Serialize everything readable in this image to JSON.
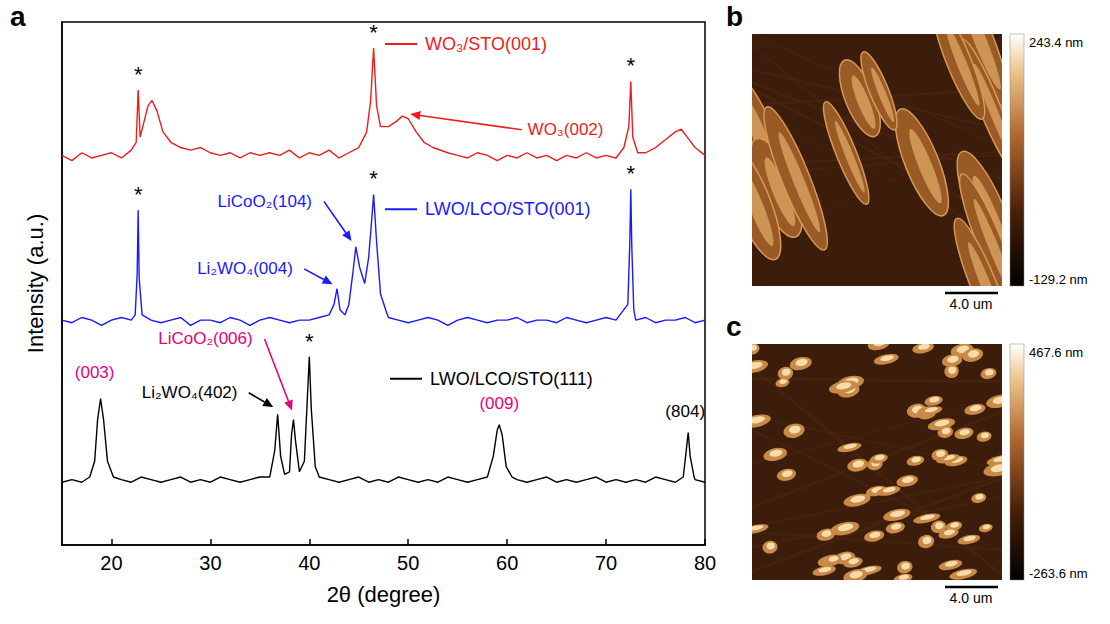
{
  "chart_data": {
    "type": "line",
    "panel": "a",
    "x_label": "2θ (degree)",
    "y_label": "Intensity (a.u.)",
    "xlim": [
      15,
      80
    ],
    "xticks": [
      20,
      30,
      40,
      50,
      60,
      70,
      80
    ],
    "ylim": [
      0,
      100
    ],
    "tick_labels": "x",
    "grid": false,
    "series": [
      {
        "name": "WO₃/STO(001)",
        "color": "#ee1c1c",
        "name_position": [
          51.7,
          95.8
        ],
        "x": [
          15,
          16,
          17,
          18,
          19,
          20,
          21,
          22,
          22.5,
          22.7,
          22.9,
          23.3,
          23.7,
          24.1,
          24.6,
          25.2,
          26,
          27,
          28,
          29,
          30,
          31,
          32,
          33,
          34,
          35,
          36,
          37,
          38,
          39,
          40,
          41,
          42,
          43,
          44,
          45,
          45.8,
          46.2,
          46.5,
          46.8,
          47.2,
          48,
          48.8,
          49.4,
          50,
          50.8,
          51.6,
          52.5,
          54,
          55,
          56,
          57,
          58,
          59,
          60,
          61,
          62,
          63,
          64,
          65,
          66,
          67,
          68,
          69,
          70,
          71,
          71.8,
          72.3,
          72.5,
          72.7,
          73.2,
          74,
          75,
          76,
          77,
          77.6,
          78.2,
          79,
          80
        ],
        "values": [
          74.5,
          73.5,
          75,
          74,
          74.5,
          75,
          74,
          75.5,
          77,
          87,
          78,
          81,
          84,
          85,
          83,
          79,
          77,
          76,
          75.5,
          76,
          75,
          74.5,
          75,
          74,
          75,
          74.5,
          75,
          74.5,
          75.5,
          74,
          75,
          74.5,
          75.5,
          74,
          75,
          76,
          79,
          85,
          95,
          84,
          80,
          80,
          81,
          82,
          81.5,
          79,
          77,
          76,
          75,
          74.5,
          74,
          75,
          74.5,
          73.5,
          74.5,
          74,
          75,
          74,
          74.5,
          73.5,
          74.5,
          74,
          75,
          74,
          74.5,
          74,
          76,
          80,
          88.6,
          78,
          75,
          75,
          76,
          77.5,
          79,
          79.5,
          78,
          76,
          74.5
        ]
      },
      {
        "name": "LWO/LCO/STO(001)",
        "color": "#1a1aff",
        "name_position": [
          51.7,
          64.2
        ],
        "x": [
          15,
          16,
          17,
          18,
          19,
          20,
          21,
          22,
          22.4,
          22.6,
          22.7,
          22.8,
          23.1,
          24,
          25,
          26,
          27,
          28,
          29,
          30,
          31,
          32,
          33,
          34,
          35,
          36,
          37,
          38,
          39,
          40,
          41,
          42,
          42.5,
          42.8,
          43.1,
          43.6,
          44,
          44.4,
          44.7,
          45.1,
          45.6,
          46,
          46.3,
          46.5,
          46.8,
          47.2,
          47.8,
          48,
          49,
          50,
          51,
          52,
          53,
          54,
          55,
          56,
          57,
          58,
          59,
          60,
          61,
          62,
          63,
          64,
          65,
          66,
          67,
          68,
          69,
          70,
          71,
          72.2,
          72.4,
          72.5,
          72.6,
          72.8,
          73,
          74,
          75,
          76,
          77,
          78,
          79,
          80
        ],
        "values": [
          43,
          42.5,
          43.5,
          43,
          42,
          43,
          43.5,
          43,
          44,
          52,
          64,
          51,
          44,
          43,
          42.5,
          43,
          43.5,
          42,
          43,
          43,
          42.5,
          43.5,
          43,
          42,
          43,
          43.5,
          43,
          42.5,
          43,
          43,
          43.5,
          44,
          46,
          49,
          45,
          44,
          46,
          52,
          57,
          53,
          50,
          55,
          62,
          67,
          58,
          48,
          44.5,
          43.5,
          43,
          42.5,
          43,
          43.5,
          43,
          42,
          43,
          43.5,
          43,
          42.5,
          43,
          43,
          43.5,
          42.5,
          43,
          43,
          42.5,
          43.5,
          43,
          42.5,
          43,
          43.5,
          43,
          46,
          58,
          68,
          57,
          45,
          43,
          43.5,
          42.5,
          43,
          43,
          43.5,
          42.5,
          43
        ]
      },
      {
        "name": "LWO/LCO/STO(111)",
        "color": "#000000",
        "name_position": [
          52.2,
          31.8
        ],
        "x": [
          15,
          16,
          17,
          17.8,
          18.3,
          18.6,
          18.9,
          19.2,
          19.6,
          20.2,
          21,
          22,
          23,
          24,
          25,
          26,
          27,
          28,
          29,
          30,
          31,
          32,
          33,
          34,
          35,
          36,
          36.5,
          36.8,
          37.1,
          37.5,
          38,
          38.2,
          38.4,
          38.6,
          39,
          39.5,
          39.8,
          40,
          40.2,
          40.6,
          41,
          42,
          43,
          44,
          45,
          46,
          47,
          48,
          49,
          50,
          51,
          52,
          53,
          54,
          55,
          56,
          57,
          58,
          58.6,
          59,
          59.2,
          59.5,
          59.9,
          60.5,
          61,
          62,
          63,
          64,
          65,
          66,
          67,
          68,
          69,
          70,
          71,
          72,
          73,
          74,
          75,
          76,
          77,
          77.8,
          78.1,
          78.3,
          78.5,
          78.9,
          79,
          80
        ],
        "values": [
          12,
          12.5,
          12,
          13,
          16,
          24,
          28,
          24,
          16,
          13,
          12.5,
          12,
          13,
          12.5,
          12,
          12.5,
          13,
          12,
          12.5,
          12,
          13,
          12.5,
          12,
          12.5,
          13,
          13,
          18,
          25,
          17,
          13.5,
          14,
          21,
          24,
          20,
          14,
          16,
          28,
          36,
          26,
          15,
          13,
          12.5,
          12,
          12.5,
          13,
          12,
          12.5,
          12,
          13,
          12.5,
          12,
          12.5,
          12,
          13,
          12.5,
          12,
          12.5,
          13,
          17,
          22,
          23,
          21,
          15,
          13,
          12.5,
          12,
          12.5,
          13,
          12,
          12.5,
          12,
          12.5,
          13,
          12,
          12.5,
          12,
          12.5,
          12,
          13,
          12.5,
          12,
          13,
          18,
          21.5,
          17,
          13,
          12.5,
          12
        ]
      }
    ],
    "annotations": [
      {
        "text": "*",
        "x": 22.7,
        "y": 90,
        "color": "#000000"
      },
      {
        "text": "*",
        "x": 46.5,
        "y": 98,
        "color": "#000000"
      },
      {
        "text": "*",
        "x": 72.5,
        "y": 91.6,
        "color": "#000000"
      },
      {
        "text": "*",
        "x": 22.7,
        "y": 67,
        "color": "#000000"
      },
      {
        "text": "*",
        "x": 46.5,
        "y": 70,
        "color": "#000000"
      },
      {
        "text": "*",
        "x": 72.5,
        "y": 71,
        "color": "#000000"
      },
      {
        "text": "*",
        "x": 40,
        "y": 39,
        "color": "#000000"
      },
      {
        "text": "WO₃(002)",
        "x": 65.9,
        "y": 79.4,
        "color": "#ee1c1c",
        "peak": [
          49.8,
          82.5
        ]
      },
      {
        "text": "LiCoO₂(104)",
        "x": 35.5,
        "y": 65.7,
        "color": "#1a1aff",
        "peak": [
          44.5,
          57.5
        ]
      },
      {
        "text": "Li₂WO₄(004)",
        "x": 33.5,
        "y": 52.8,
        "color": "#1a1aff",
        "peak": [
          42.7,
          49.5
        ]
      },
      {
        "text": "(003)",
        "x": 18.3,
        "y": 33,
        "color": "#e6007e"
      },
      {
        "text": "LiCoO₂(006)",
        "x": 29.5,
        "y": 39.4,
        "color": "#e6007e",
        "peak": [
          38.4,
          25
        ]
      },
      {
        "text": "Li₂WO₄(402)",
        "x": 27.9,
        "y": 29.1,
        "color": "#000000",
        "peak": [
          36.7,
          26
        ]
      },
      {
        "text": "(009)",
        "x": 59.2,
        "y": 27,
        "color": "#e6007e"
      },
      {
        "text": "(804)",
        "x": 78,
        "y": 25.6,
        "color": "#000000"
      }
    ]
  },
  "afm_images": [
    {
      "panel": "b",
      "colorbar": {
        "max": {
          "value": 243.4,
          "label": "243.4 nm"
        },
        "min": {
          "value": -129.2,
          "label": "-129.2 nm"
        }
      },
      "scale_bar": "4.0 um"
    },
    {
      "panel": "c",
      "colorbar": {
        "max": {
          "value": 467.6,
          "label": "467.6 nm"
        },
        "min": {
          "value": -263.6,
          "label": "-263.6 nm"
        }
      },
      "scale_bar": "4.0 um"
    }
  ]
}
